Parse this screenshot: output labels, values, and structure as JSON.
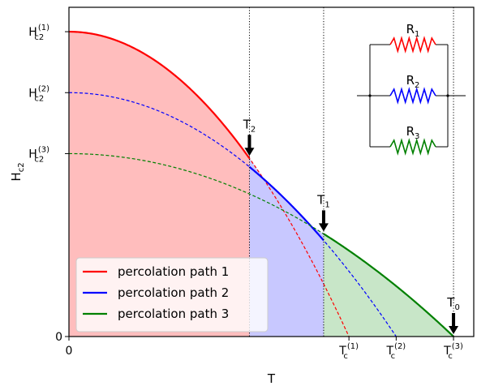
{
  "chart_data": {
    "type": "line",
    "xlabel": "T",
    "ylabel": "H",
    "ylabel_sub": "c2",
    "xlim": [
      0,
      1.2
    ],
    "ylim": [
      0,
      1.08
    ],
    "grid": false,
    "legend_placement": "lower-left",
    "x_ticks": [
      {
        "value": 0,
        "main": "0",
        "sub": "",
        "sup": ""
      },
      {
        "value": 0.83,
        "main": "T",
        "sub": "c",
        "sup": "(1)"
      },
      {
        "value": 0.97,
        "main": "T",
        "sub": "c",
        "sup": "(2)"
      },
      {
        "value": 1.14,
        "main": "T",
        "sub": "c",
        "sup": "(3)"
      }
    ],
    "y_ticks": [
      {
        "value": 0,
        "main": "0",
        "sub": "",
        "sup": ""
      },
      {
        "value": 1.0,
        "main": "H",
        "sub": "c2",
        "sup": "(1)"
      },
      {
        "value": 0.8,
        "main": "H",
        "sub": "c2",
        "sup": "(2)"
      },
      {
        "value": 0.6,
        "main": "H",
        "sub": "c2",
        "sup": "(3)"
      }
    ],
    "series": [
      {
        "name": "percolation path 1",
        "color": "#ff0000",
        "Tc": 0.83,
        "H0": 1.0,
        "solid_range": [
          0,
          0.535
        ],
        "fill": "#ffbdbd"
      },
      {
        "name": "percolation path 2",
        "color": "#0000ff",
        "Tc": 0.97,
        "H0": 0.8,
        "solid_range": [
          0.535,
          0.755
        ],
        "fill": "#c8c8ff"
      },
      {
        "name": "percolation path 3",
        "color": "#008000",
        "Tc": 1.14,
        "H0": 0.6,
        "solid_range": [
          0.755,
          1.14
        ],
        "fill": "#c8e6c8"
      }
    ],
    "markers": [
      {
        "x": 0.535,
        "main": "T",
        "sub": "2"
      },
      {
        "x": 0.755,
        "main": "T",
        "sub": "1"
      },
      {
        "x": 1.14,
        "main": "T",
        "sub": "0"
      }
    ],
    "inset": {
      "resistors": [
        {
          "main": "R",
          "sub": "1",
          "color": "#ff0000"
        },
        {
          "main": "R",
          "sub": "2",
          "color": "#0000ff"
        },
        {
          "main": "R",
          "sub": "3",
          "color": "#008000"
        }
      ]
    }
  }
}
